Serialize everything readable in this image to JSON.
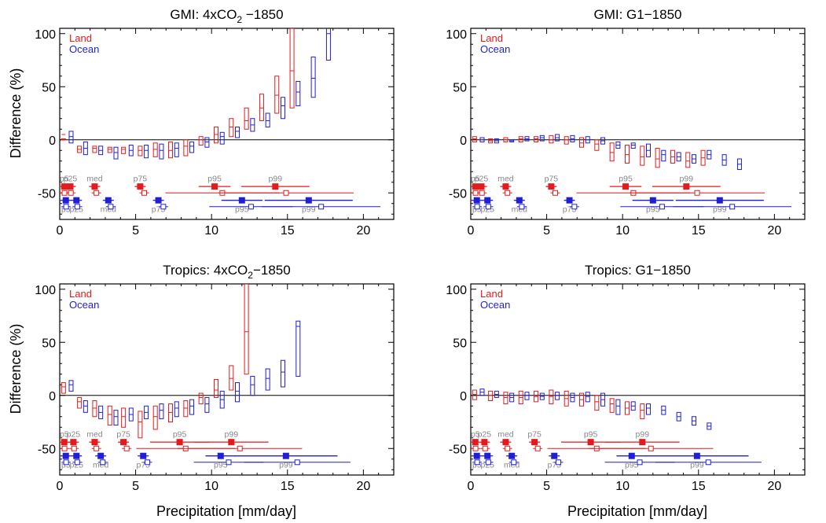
{
  "figure": {
    "xlabel": "Precipitation [mm/day]",
    "ylabel": "Difference (%)"
  },
  "legend": [
    {
      "name": "Land",
      "color": "#e41a1c"
    },
    {
      "name": "Ocean",
      "color": "#1f1fd6"
    }
  ],
  "chart_data": [
    {
      "type": "box",
      "title": "GMI: 4xCO",
      "title_sub": "2",
      "title_rest": " −1850",
      "xlim": [
        0,
        22
      ],
      "ylim": [
        -75,
        105
      ],
      "xticks": [
        0,
        5,
        10,
        15,
        20
      ],
      "yticks": [
        -50,
        0,
        50,
        100
      ],
      "land_boxes": [
        [
          0.25,
          1,
          10,
          5
        ],
        [
          1.3,
          -6,
          -12,
          -9
        ],
        [
          2.3,
          -6,
          -12,
          -8
        ],
        [
          3.3,
          -7,
          -12,
          -9
        ],
        [
          4.2,
          -7,
          -13,
          -9
        ],
        [
          5.3,
          -6,
          -15,
          -10
        ],
        [
          6.3,
          -3,
          -16,
          -9
        ],
        [
          7.3,
          -2,
          -17,
          -10
        ],
        [
          8.3,
          0,
          -15,
          -6
        ],
        [
          9.3,
          3,
          -5,
          0
        ],
        [
          10.3,
          12,
          -3,
          5
        ],
        [
          11.3,
          20,
          3,
          12
        ],
        [
          12.3,
          30,
          10,
          18
        ],
        [
          13.3,
          43,
          18,
          30
        ],
        [
          14.3,
          60,
          25,
          42
        ],
        [
          15.3,
          105,
          30,
          65
        ]
      ],
      "ocean_boxes": [
        [
          0.75,
          8,
          -3,
          3
        ],
        [
          1.7,
          -2,
          -14,
          -8
        ],
        [
          2.7,
          -6,
          -14,
          -10
        ],
        [
          3.7,
          -7,
          -18,
          -12
        ],
        [
          4.7,
          -5,
          -15,
          -10
        ],
        [
          5.7,
          -5,
          -17,
          -10
        ],
        [
          6.7,
          -4,
          -18,
          -10
        ],
        [
          7.7,
          -3,
          -16,
          -8
        ],
        [
          8.7,
          -2,
          -12,
          -6
        ],
        [
          9.7,
          2,
          -7,
          -2
        ],
        [
          10.7,
          7,
          -4,
          3
        ],
        [
          11.7,
          12,
          2,
          8
        ],
        [
          12.7,
          20,
          8,
          14
        ],
        [
          13.7,
          25,
          12,
          18
        ],
        [
          14.7,
          40,
          20,
          32
        ],
        [
          15.7,
          55,
          32,
          45
        ],
        [
          16.7,
          78,
          40,
          58
        ],
        [
          17.7,
          125,
          75,
          100
        ]
      ],
      "land_pct": {
        "p5": 0.3,
        "p25": 0.7,
        "med": 2.3,
        "p75": 5.3,
        "p95": 10.2,
        "p99": 14.2
      },
      "land_pct_ranges": [
        [
          9.2,
          11.3
        ],
        [
          12.0,
          16.5
        ],
        [
          8.7,
          16.2
        ],
        [
          10.7,
          19.6
        ]
      ],
      "ocean_pct": {
        "p5": 0.4,
        "p25": 1.1,
        "med": 3.2,
        "p75": 6.5,
        "p95": 12.0,
        "p99": 16.4
      },
      "ocean_pct_ranges": [
        [
          10.7,
          13.4
        ],
        [
          12.9,
          18.7
        ],
        [
          10.3,
          15.8
        ],
        [
          13.7,
          21.5
        ]
      ],
      "pct_label_colors": {
        "label": "#888888"
      }
    },
    {
      "type": "box",
      "title": "GMI: G1−1850",
      "title_sub": "",
      "title_rest": "",
      "xlim": [
        0,
        22
      ],
      "ylim": [
        -75,
        105
      ],
      "xticks": [
        0,
        5,
        10,
        15,
        20
      ],
      "yticks": [
        -50,
        0,
        50,
        100
      ],
      "land_boxes": [
        [
          0.25,
          3,
          -2,
          1
        ],
        [
          1.3,
          1,
          -3,
          -1
        ],
        [
          2.3,
          2,
          -2,
          0
        ],
        [
          3.3,
          3,
          -2,
          1
        ],
        [
          4.3,
          3,
          -2,
          1
        ],
        [
          5.3,
          4,
          -3,
          0
        ],
        [
          6.3,
          3,
          -4,
          0
        ],
        [
          7.3,
          2,
          -7,
          -3
        ],
        [
          8.3,
          0,
          -10,
          -4
        ],
        [
          9.3,
          -3,
          -20,
          -12
        ],
        [
          10.3,
          -5,
          -22,
          -14
        ],
        [
          11.3,
          -6,
          -24,
          -16
        ],
        [
          12.3,
          -8,
          -26,
          -18
        ],
        [
          13.3,
          -10,
          -22,
          -16
        ],
        [
          14.3,
          -12,
          -26,
          -20
        ],
        [
          15.3,
          -10,
          -24,
          -17
        ]
      ],
      "ocean_boxes": [
        [
          0.75,
          2,
          -2,
          0
        ],
        [
          1.7,
          1,
          -3,
          -1
        ],
        [
          2.7,
          0,
          -2,
          -1
        ],
        [
          3.7,
          3,
          -1,
          1
        ],
        [
          4.7,
          4,
          -1,
          2
        ],
        [
          5.7,
          5,
          -1,
          2
        ],
        [
          6.7,
          4,
          -2,
          1
        ],
        [
          7.7,
          3,
          -3,
          0
        ],
        [
          8.7,
          2,
          -4,
          -1
        ],
        [
          9.7,
          -2,
          -8,
          -5
        ],
        [
          10.7,
          -3,
          -8,
          -5
        ],
        [
          11.7,
          -4,
          -16,
          -10
        ],
        [
          12.7,
          -10,
          -20,
          -14
        ],
        [
          13.7,
          -12,
          -20,
          -16
        ],
        [
          14.7,
          -14,
          -22,
          -18
        ],
        [
          15.7,
          -10,
          -18,
          -14
        ],
        [
          16.7,
          -14,
          -24,
          -19
        ],
        [
          17.7,
          -18,
          -28,
          -23
        ]
      ],
      "land_pct": {
        "p5": 0.3,
        "p25": 0.7,
        "med": 2.3,
        "p75": 5.3,
        "p95": 10.2,
        "p99": 14.2
      },
      "land_pct_ranges": [
        [
          9.2,
          11.3
        ],
        [
          12.0,
          16.5
        ],
        [
          8.7,
          16.2
        ],
        [
          10.7,
          19.6
        ]
      ],
      "ocean_pct": {
        "p5": 0.4,
        "p25": 1.1,
        "med": 3.2,
        "p75": 6.5,
        "p95": 12.0,
        "p99": 16.4
      },
      "ocean_pct_ranges": [
        [
          10.7,
          13.4
        ],
        [
          12.9,
          18.7
        ],
        [
          10.3,
          15.8
        ],
        [
          13.7,
          21.5
        ]
      ]
    },
    {
      "type": "box",
      "title": "Tropics: 4xCO",
      "title_sub": "2",
      "title_rest": "−1850",
      "xlim": [
        0,
        22
      ],
      "ylim": [
        -75,
        105
      ],
      "xticks": [
        0,
        5,
        10,
        15,
        20
      ],
      "yticks": [
        -50,
        0,
        50,
        100
      ],
      "land_boxes": [
        [
          0.25,
          12,
          2,
          8
        ],
        [
          1.3,
          -2,
          -12,
          -6
        ],
        [
          2.3,
          -5,
          -20,
          -12
        ],
        [
          3.3,
          -10,
          -28,
          -18
        ],
        [
          4.2,
          -12,
          -30,
          -20
        ],
        [
          5.3,
          -15,
          -40,
          -25
        ],
        [
          6.3,
          -10,
          -32,
          -20
        ],
        [
          7.3,
          -8,
          -25,
          -16
        ],
        [
          8.3,
          -5,
          -20,
          -12
        ],
        [
          9.3,
          2,
          -8,
          -2
        ],
        [
          10.3,
          15,
          -2,
          5
        ],
        [
          11.3,
          28,
          5,
          16
        ],
        [
          12.3,
          105,
          20,
          60
        ]
      ],
      "ocean_boxes": [
        [
          0.75,
          14,
          4,
          10
        ],
        [
          1.7,
          -5,
          -16,
          -10
        ],
        [
          2.7,
          -10,
          -22,
          -16
        ],
        [
          3.7,
          -14,
          -28,
          -20
        ],
        [
          4.7,
          -12,
          -24,
          -18
        ],
        [
          5.7,
          -10,
          -22,
          -16
        ],
        [
          6.7,
          -8,
          -22,
          -14
        ],
        [
          7.7,
          -6,
          -20,
          -12
        ],
        [
          8.7,
          -4,
          -18,
          -10
        ],
        [
          9.7,
          -2,
          -16,
          -8
        ],
        [
          10.7,
          4,
          -12,
          -4
        ],
        [
          11.7,
          12,
          -6,
          4
        ],
        [
          12.7,
          18,
          0,
          10
        ],
        [
          13.7,
          25,
          5,
          16
        ],
        [
          14.7,
          33,
          8,
          22
        ],
        [
          15.7,
          70,
          18,
          65
        ]
      ],
      "land_pct": {
        "p5": 0.3,
        "p25": 0.9,
        "med": 2.3,
        "p75": 4.2,
        "p95": 7.9,
        "p99": 11.3
      },
      "land_pct_ranges": [
        [
          5.9,
          9.8
        ],
        [
          7.6,
          12.5
        ],
        [
          6.3,
          12.8
        ],
        [
          7.5,
          15.7
        ]
      ],
      "ocean_pct": {
        "p5": 0.4,
        "p25": 1.1,
        "med": 2.7,
        "p75": 5.5,
        "p95": 10.6,
        "p99": 14.9
      },
      "ocean_pct_ranges": [
        [
          9.5,
          11.5
        ],
        [
          11.2,
          18.0
        ],
        [
          9.1,
          13.7
        ],
        [
          12.0,
          19.0
        ]
      ]
    },
    {
      "type": "box",
      "title": "Tropics: G1−1850",
      "title_sub": "",
      "title_rest": "",
      "xlim": [
        0,
        22
      ],
      "ylim": [
        -75,
        105
      ],
      "xticks": [
        0,
        5,
        10,
        15,
        20
      ],
      "yticks": [
        -50,
        0,
        50,
        100
      ],
      "land_boxes": [
        [
          0.25,
          5,
          -4,
          1
        ],
        [
          1.3,
          4,
          -5,
          0
        ],
        [
          2.3,
          3,
          -8,
          -2
        ],
        [
          3.3,
          4,
          -8,
          -2
        ],
        [
          4.3,
          4,
          -6,
          -1
        ],
        [
          5.3,
          5,
          -8,
          -1
        ],
        [
          6.3,
          4,
          -10,
          -3
        ],
        [
          7.3,
          2,
          -10,
          -4
        ],
        [
          8.3,
          0,
          -14,
          -6
        ],
        [
          9.3,
          -3,
          -16,
          -8
        ],
        [
          10.3,
          -6,
          -18,
          -12
        ],
        [
          11.3,
          -8,
          -22,
          -14
        ]
      ],
      "ocean_boxes": [
        [
          0.75,
          6,
          0,
          3
        ],
        [
          1.7,
          4,
          -2,
          1
        ],
        [
          2.7,
          2,
          -6,
          -2
        ],
        [
          3.7,
          3,
          -4,
          0
        ],
        [
          4.7,
          2,
          -4,
          -1
        ],
        [
          5.7,
          3,
          -4,
          0
        ],
        [
          6.7,
          2,
          -6,
          -2
        ],
        [
          7.7,
          3,
          -6,
          -1
        ],
        [
          8.7,
          2,
          -10,
          -4
        ],
        [
          9.7,
          -4,
          -18,
          -10
        ],
        [
          10.7,
          -6,
          -14,
          -10
        ],
        [
          11.7,
          -8,
          -18,
          -12
        ],
        [
          12.7,
          -10,
          -18,
          -14
        ],
        [
          13.7,
          -16,
          -24,
          -20
        ],
        [
          14.7,
          -20,
          -28,
          -24
        ],
        [
          15.7,
          -26,
          -32,
          -29
        ]
      ],
      "land_pct": {
        "p5": 0.3,
        "p25": 0.9,
        "med": 2.3,
        "p75": 4.2,
        "p95": 7.9,
        "p99": 11.3
      },
      "land_pct_ranges": [
        [
          5.9,
          9.8
        ],
        [
          7.6,
          12.5
        ],
        [
          6.3,
          12.8
        ],
        [
          7.5,
          15.7
        ]
      ],
      "ocean_pct": {
        "p5": 0.4,
        "p25": 1.1,
        "med": 2.7,
        "p75": 5.5,
        "p95": 10.6,
        "p99": 14.9
      },
      "ocean_pct_ranges": [
        [
          9.5,
          11.5
        ],
        [
          11.2,
          18.0
        ],
        [
          9.1,
          13.7
        ],
        [
          12.0,
          19.0
        ]
      ]
    }
  ]
}
